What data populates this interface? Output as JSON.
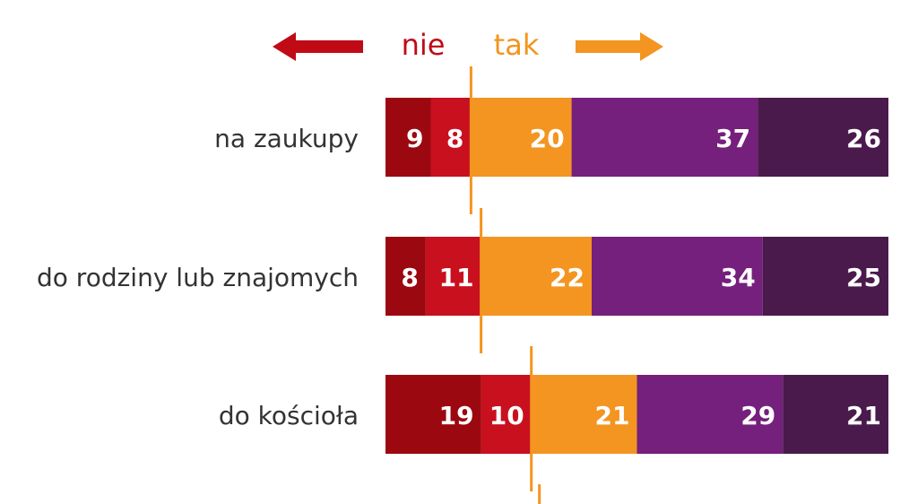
{
  "chart_data": {
    "type": "bar",
    "orientation": "horizontal",
    "stacked": true,
    "legend": {
      "negative_label": "nie",
      "positive_label": "tak"
    },
    "categories": [
      "na zaukupy",
      "do rodziny lub znajomych",
      "do kościoła"
    ],
    "series": [
      {
        "values": [
          9,
          8,
          19
        ]
      },
      {
        "values": [
          8,
          11,
          10
        ]
      },
      {
        "values": [
          20,
          22,
          21
        ]
      },
      {
        "values": [
          37,
          34,
          29
        ]
      },
      {
        "values": [
          26,
          25,
          21
        ]
      }
    ],
    "colors": [
      "#9c0810",
      "#c8101e",
      "#f39520",
      "#74207c",
      "#4a1a4c"
    ],
    "marker_color": "#f39520",
    "negative_color": "#c00b17",
    "positive_color": "#f39520",
    "label_color": "#ffffff",
    "category_label_color": "#333333",
    "grid": false
  }
}
